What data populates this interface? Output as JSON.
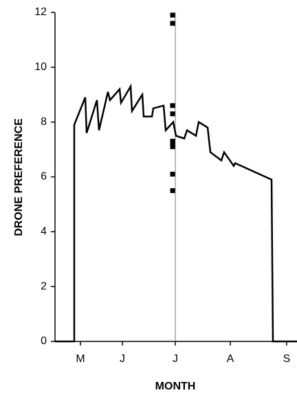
{
  "chart_data": {
    "type": "line",
    "xlabel": "MONTH",
    "ylabel": "DRONE PREFERENCE",
    "xlim": [
      0,
      352
    ],
    "ylim": [
      0,
      12
    ],
    "xticks": [
      {
        "value": 37,
        "label": "M"
      },
      {
        "value": 98,
        "label": "J"
      },
      {
        "value": 175,
        "label": "J"
      },
      {
        "value": 255,
        "label": "A"
      },
      {
        "value": 337,
        "label": "S"
      }
    ],
    "yticks": [
      0,
      2,
      4,
      6,
      8,
      10,
      12
    ],
    "vline": 175,
    "series": [
      {
        "type": "line",
        "color": "#000000",
        "x": [
          0,
          28,
          28,
          44,
          46,
          61,
          64,
          77,
          80,
          94,
          96,
          110,
          112,
          127,
          129,
          141,
          143,
          158,
          161,
          172,
          176,
          188,
          192,
          205,
          209,
          222,
          226,
          242,
          246,
          260,
          262,
          315,
          317,
          352
        ],
        "values": [
          0,
          0,
          7.9,
          8.9,
          7.6,
          8.8,
          7.7,
          9.1,
          8.8,
          9.2,
          8.7,
          9.3,
          8.4,
          9.0,
          8.2,
          8.2,
          8.5,
          8.6,
          7.7,
          8.0,
          7.5,
          7.4,
          7.7,
          7.5,
          8.0,
          7.8,
          6.9,
          6.6,
          6.9,
          6.4,
          6.5,
          5.9,
          0,
          0
        ]
      },
      {
        "type": "scatter",
        "color": "#000000",
        "x": [
          171,
          171,
          171,
          171,
          171,
          171,
          171,
          171,
          171
        ],
        "values": [
          11.9,
          11.6,
          8.6,
          8.3,
          7.3,
          7.2,
          7.1,
          6.1,
          5.5
        ]
      }
    ]
  }
}
